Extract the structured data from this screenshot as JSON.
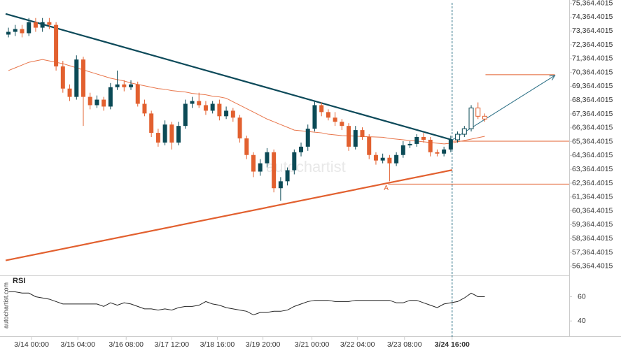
{
  "chart_data": {
    "type": "candlestick",
    "open": [
      73100,
      73300,
      73500,
      73200,
      74000,
      73600,
      74000,
      73800,
      70800,
      69200,
      68600,
      71300,
      68600,
      68000,
      68400,
      67900,
      69300,
      69500,
      69300,
      69500,
      68100,
      67400,
      66000,
      65300,
      66600,
      65300,
      66500,
      68100,
      68300,
      68000,
      67600,
      68100,
      67200,
      67600,
      67100,
      65600,
      64400,
      63200,
      63800,
      64600,
      62000,
      62500,
      63300,
      64600,
      65000,
      66300,
      68000,
      67500,
      67100,
      66800,
      66500,
      65000,
      66200,
      65700,
      64400,
      64000,
      64200,
      63800,
      64400,
      65100,
      65200,
      65700,
      65500,
      64600,
      64500,
      64800,
      65500,
      65900,
      66300,
      67800,
      67200
    ],
    "high": [
      73600,
      73800,
      73800,
      74300,
      74300,
      74300,
      74300,
      74000,
      71200,
      69500,
      71600,
      71500,
      68900,
      68700,
      68600,
      69600,
      70500,
      69800,
      69800,
      69700,
      68400,
      67600,
      66300,
      66900,
      66800,
      66800,
      68400,
      68600,
      68900,
      68300,
      68300,
      68400,
      67900,
      67800,
      67300,
      65800,
      64600,
      64100,
      64900,
      64800,
      62800,
      63500,
      64800,
      65300,
      66600,
      68300,
      68200,
      67700,
      67500,
      67000,
      66700,
      66500,
      66400,
      65900,
      64600,
      64500,
      64400,
      64600,
      65400,
      65400,
      65900,
      66000,
      65700,
      64800,
      65000,
      65800,
      66100,
      66500,
      68000,
      68200,
      67400
    ],
    "low": [
      72900,
      73000,
      72900,
      73000,
      73300,
      73300,
      73500,
      70500,
      68900,
      68300,
      68400,
      66500,
      67700,
      67800,
      67600,
      67700,
      69100,
      69000,
      69100,
      67900,
      67200,
      65700,
      65000,
      65100,
      64800,
      65100,
      66300,
      67800,
      67800,
      67300,
      67400,
      66900,
      67000,
      66800,
      65300,
      64100,
      62800,
      62900,
      63500,
      61700,
      61100,
      62200,
      63000,
      64300,
      64700,
      66100,
      67200,
      66900,
      66500,
      66200,
      64700,
      64800,
      65500,
      64100,
      63700,
      63800,
      62500,
      63600,
      64200,
      64900,
      65000,
      65300,
      64300,
      64300,
      64300,
      64600,
      65300,
      65700,
      66100,
      67000,
      66800
    ],
    "close": [
      73300,
      73500,
      73200,
      74000,
      73600,
      74000,
      73800,
      70800,
      69200,
      68600,
      71300,
      68600,
      68000,
      68400,
      67900,
      69300,
      69500,
      69300,
      69500,
      68100,
      67400,
      66000,
      65300,
      66600,
      65300,
      66500,
      68100,
      68300,
      68000,
      67600,
      68100,
      67200,
      67600,
      67100,
      65600,
      64400,
      63200,
      63800,
      64600,
      62000,
      62500,
      63300,
      64600,
      65000,
      66300,
      68000,
      67500,
      67100,
      66800,
      66500,
      65000,
      66200,
      65700,
      64400,
      64000,
      64200,
      63800,
      64400,
      65100,
      65200,
      65700,
      65500,
      64600,
      64500,
      64800,
      65500,
      65900,
      66300,
      67800,
      67200,
      67000
    ],
    "color_up": "#0b4a56",
    "color_down": "#e2602f",
    "xlim": [
      -1.24,
      82.4
    ],
    "xticks": [
      {
        "value": 3.4,
        "label": "3/14 00:00"
      },
      {
        "value": 10.2,
        "label": "3/15 04:00"
      },
      {
        "value": 17.3,
        "label": "3/16 08:00"
      },
      {
        "value": 24,
        "label": "3/17 12:00"
      },
      {
        "value": 30.7,
        "label": "3/18 16:00"
      },
      {
        "value": 37.4,
        "label": "3/19 20:00"
      },
      {
        "value": 44.6,
        "label": "3/21 00:00"
      },
      {
        "value": 51.3,
        "label": "3/22 04:00"
      },
      {
        "value": 58.2,
        "label": "3/23 08:00"
      },
      {
        "value": 65.2,
        "label": "3/24 16:00"
      }
    ],
    "current_x": 65.2,
    "ylim": [
      55800,
      75600
    ],
    "yticks": [
      {
        "value": 75364.4015,
        "label": "75,364.4015"
      },
      {
        "value": 74364.4015,
        "label": "74,364.4015"
      },
      {
        "value": 73364.4015,
        "label": "73,364.4015"
      },
      {
        "value": 72364.4015,
        "label": "72,364.4015"
      },
      {
        "value": 71364.4015,
        "label": "71,364.4015"
      },
      {
        "value": 70364.4015,
        "label": "70,364.4015"
      },
      {
        "value": 69364.4015,
        "label": "69,364.4015"
      },
      {
        "value": 68364.4015,
        "label": "68,364.4015"
      },
      {
        "value": 67364.4015,
        "label": "67,364.4015"
      },
      {
        "value": 66364.4015,
        "label": "66,364.4015"
      },
      {
        "value": 65364.4015,
        "label": "65,364.4015"
      },
      {
        "value": 64364.4015,
        "label": "64,364.4015"
      },
      {
        "value": 63364.4015,
        "label": "63,364.4015"
      },
      {
        "value": 62364.4015,
        "label": "62,364.4015"
      },
      {
        "value": 61364.4015,
        "label": "61,364.4015"
      },
      {
        "value": 60364.4015,
        "label": "60,364.4015"
      },
      {
        "value": 59364.4015,
        "label": "59,364.4015"
      },
      {
        "value": 58364.4015,
        "label": "58,364.4015"
      },
      {
        "value": 57364.4015,
        "label": "57,364.4015"
      },
      {
        "value": 56364.4015,
        "label": "56,364.4015"
      }
    ],
    "ma": {
      "color": "#e8754a",
      "values": [
        70500,
        70700,
        70900,
        71100,
        71200,
        71300,
        71200,
        71100,
        71000,
        70850,
        70700,
        70550,
        70400,
        70250,
        70100,
        69950,
        69850,
        69750,
        69600,
        69500,
        69400,
        69300,
        69200,
        69150,
        69050,
        69000,
        68950,
        68850,
        68800,
        68750,
        68650,
        68600,
        68500,
        68250,
        68000,
        67750,
        67500,
        67250,
        67000,
        66800,
        66600,
        66400,
        66200,
        66150,
        66100,
        66050,
        66000,
        65900,
        65850,
        65800,
        65780,
        65760,
        65740,
        65720,
        65700,
        65680,
        65600,
        65550,
        65500,
        65450,
        65400,
        65350,
        65300,
        65250,
        65200,
        65250,
        65350,
        65450,
        65550,
        65650,
        65750
      ]
    },
    "trendlines": [
      {
        "color": "#0d4a5a",
        "x": [
          -0.41,
          65.2
        ],
        "y": [
          74600,
          65490
        ]
      },
      {
        "color": "#e2602f",
        "x": [
          -0.41,
          65.2
        ],
        "y": [
          56783,
          63314
        ]
      }
    ],
    "projection": {
      "color": "#2a6f85",
      "x": [
        65.2,
        80.3
      ],
      "y": [
        65490,
        70150
      ]
    },
    "levels": [
      {
        "value": 70200,
        "x": [
          70.1,
          80.3
        ],
        "color": "#e2602f"
      },
      {
        "value": 65400,
        "x": [
          65.2,
          82.4
        ],
        "color": "#e2602f"
      },
      {
        "value": 62300,
        "x": [
          55.8,
          82.4
        ],
        "color": "#e2602f"
      }
    ],
    "annotation": {
      "text": "A",
      "x": 55.5,
      "y": 62000
    },
    "watermark": "autochartist",
    "source": "autochartist.com",
    "rsi": {
      "title": "RSI",
      "color": "#222",
      "ylim": [
        28,
        77
      ],
      "yticks": [
        60,
        40
      ],
      "values": [
        64,
        64,
        63,
        63,
        60,
        59,
        58,
        56,
        54,
        54,
        54,
        54,
        54,
        54,
        52,
        55,
        53,
        55,
        54,
        52,
        50,
        50,
        49,
        50,
        49,
        51,
        52,
        52,
        53,
        56,
        54,
        53,
        51,
        50,
        49,
        48,
        45,
        47,
        47,
        48,
        48,
        49,
        52,
        54,
        56,
        57,
        57,
        57,
        56,
        56,
        56,
        57,
        57,
        57,
        57,
        57,
        57,
        55,
        55,
        57,
        57,
        55,
        53,
        51,
        54,
        55,
        56,
        59,
        63,
        60,
        60
      ]
    }
  }
}
